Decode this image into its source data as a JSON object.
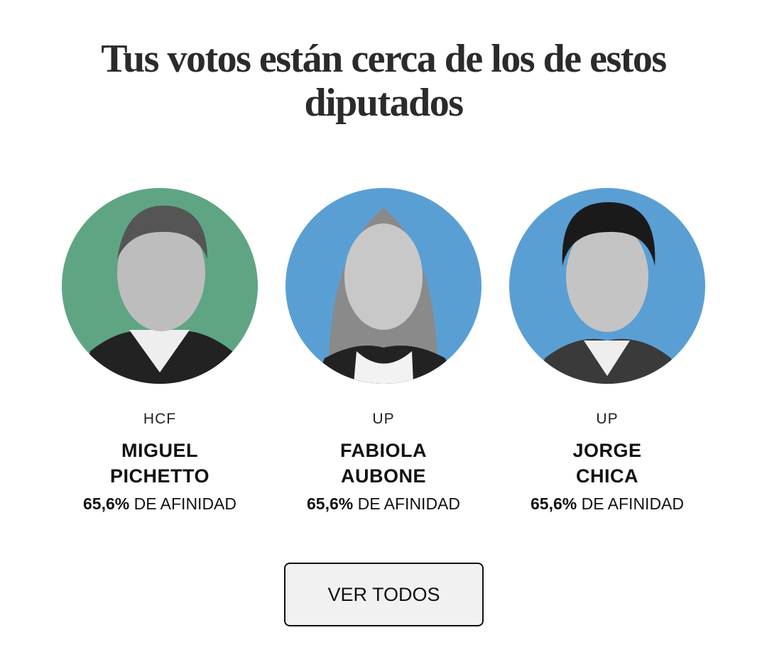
{
  "header": {
    "title": "Tus votos están cerca de los de estos diputados"
  },
  "cards": [
    {
      "party": "HCF",
      "name": "MIGUEL PICHETTO",
      "affinity": "65,6%",
      "affinity_label": "DE AFINIDAD",
      "color": "#5fa584"
    },
    {
      "party": "UP",
      "name": "FABIOLA AUBONE",
      "affinity": "65,6%",
      "affinity_label": "DE AFINIDAD",
      "color": "#5a9fd4"
    },
    {
      "party": "UP",
      "name": "JORGE CHICA",
      "affinity": "65,6%",
      "affinity_label": "DE AFINIDAD",
      "color": "#5a9fd4"
    }
  ],
  "button": {
    "label": "VER TODOS"
  }
}
